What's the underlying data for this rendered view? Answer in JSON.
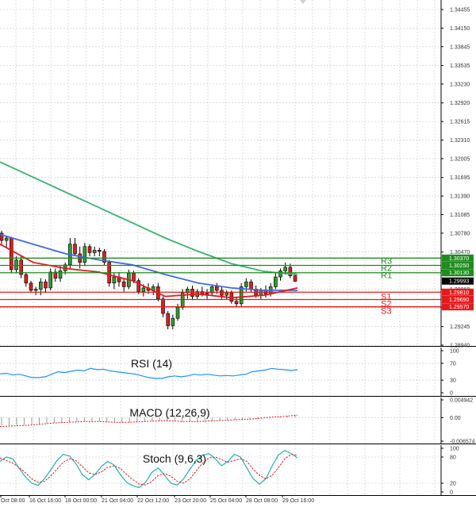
{
  "chart_data": {
    "type": "candlestick",
    "price_axis": {
      "ticks": [
        "1.34455",
        "1.34150",
        "1.33845",
        "1.33535",
        "1.33230",
        "1.32920",
        "1.32615",
        "1.32310",
        "1.32005",
        "1.31695",
        "1.31390",
        "1.31085",
        "1.30780",
        "1.30470",
        "1.30165",
        "1.29860",
        "1.29555",
        "1.29245",
        "1.28940"
      ],
      "range": [
        1.2894,
        1.34455
      ]
    },
    "time_axis": {
      "labels": [
        "Oct 08:00",
        "16 Oct 16:00",
        "18 Oct 00:00",
        "21 Oct 04:00",
        "22 Oct 12:00",
        "23 Oct 20:00",
        "25 Oct 04:00",
        "28 Oct 08:00",
        "29 Oct 16:00"
      ]
    },
    "candles": [
      [
        1.3078,
        1.3082,
        1.306,
        1.3066
      ],
      [
        1.3066,
        1.3074,
        1.3054,
        1.307
      ],
      [
        1.307,
        1.3072,
        1.3012,
        1.3018
      ],
      [
        1.3018,
        1.304,
        1.3012,
        1.3034
      ],
      [
        1.3034,
        1.304,
        1.3004,
        1.301
      ],
      [
        1.301,
        1.3014,
        1.299,
        1.2996
      ],
      [
        1.2996,
        1.3,
        1.298,
        1.2984
      ],
      [
        1.2984,
        1.299,
        1.2976,
        1.2986
      ],
      [
        1.2986,
        1.3004,
        1.2976,
        1.2998
      ],
      [
        1.2998,
        1.3002,
        1.298,
        1.2988
      ],
      [
        1.2988,
        1.302,
        1.2984,
        1.3014
      ],
      [
        1.3014,
        1.302,
        1.2998,
        1.3004
      ],
      [
        1.3004,
        1.3024,
        1.2998,
        1.3016
      ],
      [
        1.3016,
        1.303,
        1.301,
        1.3026
      ],
      [
        1.3026,
        1.307,
        1.302,
        1.306
      ],
      [
        1.306,
        1.307,
        1.304,
        1.3044
      ],
      [
        1.3044,
        1.3056,
        1.302,
        1.303
      ],
      [
        1.303,
        1.3062,
        1.3024,
        1.3056
      ],
      [
        1.3056,
        1.306,
        1.304,
        1.3046
      ],
      [
        1.3046,
        1.3056,
        1.304,
        1.305
      ],
      [
        1.305,
        1.3054,
        1.304,
        1.3048
      ],
      [
        1.3048,
        1.3052,
        1.3026,
        1.303
      ],
      [
        1.303,
        1.3034,
        1.299,
        1.2996
      ],
      [
        1.2996,
        1.3012,
        1.2986,
        1.3006
      ],
      [
        1.3006,
        1.3014,
        1.299,
        1.2998
      ],
      [
        1.2998,
        1.3004,
        1.2982,
        1.299
      ],
      [
        1.299,
        1.3018,
        1.2986,
        1.3012
      ],
      [
        1.3012,
        1.3016,
        1.2996,
        1.3
      ],
      [
        1.3,
        1.3004,
        1.2978,
        1.2982
      ],
      [
        1.2982,
        1.2994,
        1.2974,
        1.2988
      ],
      [
        1.2988,
        1.2996,
        1.2978,
        1.2984
      ],
      [
        1.2984,
        1.2994,
        1.2976,
        1.299
      ],
      [
        1.299,
        1.2996,
        1.2966,
        1.297
      ],
      [
        1.297,
        1.2974,
        1.294,
        1.2946
      ],
      [
        1.2946,
        1.295,
        1.292,
        1.2926
      ],
      [
        1.2926,
        1.2944,
        1.292,
        1.2938
      ],
      [
        1.2938,
        1.2962,
        1.2934,
        1.2956
      ],
      [
        1.2956,
        1.2986,
        1.2952,
        1.298
      ],
      [
        1.298,
        1.299,
        1.297,
        1.2986
      ],
      [
        1.2986,
        1.2992,
        1.2968,
        1.2974
      ],
      [
        1.2974,
        1.2986,
        1.297,
        1.2982
      ],
      [
        1.2982,
        1.299,
        1.2974,
        1.2978
      ],
      [
        1.2978,
        1.2986,
        1.297,
        1.298
      ],
      [
        1.298,
        1.2994,
        1.2976,
        1.299
      ],
      [
        1.299,
        1.2996,
        1.2978,
        1.2984
      ],
      [
        1.2984,
        1.299,
        1.297,
        1.2976
      ],
      [
        1.2976,
        1.2984,
        1.297,
        1.298
      ],
      [
        1.298,
        1.2984,
        1.2962,
        1.2966
      ],
      [
        1.2966,
        1.2972,
        1.2956,
        1.2962
      ],
      [
        1.2962,
        1.2996,
        1.2958,
        1.299
      ],
      [
        1.299,
        1.3004,
        1.2982,
        1.2998
      ],
      [
        1.2998,
        1.3002,
        1.298,
        1.2986
      ],
      [
        1.2986,
        1.2992,
        1.2972,
        1.2976
      ],
      [
        1.2976,
        1.2988,
        1.297,
        1.2984
      ],
      [
        1.2984,
        1.2992,
        1.2972,
        1.2978
      ],
      [
        1.2978,
        1.2996,
        1.2974,
        1.299
      ],
      [
        1.299,
        1.3012,
        1.2986,
        1.3006
      ],
      [
        1.3006,
        1.302,
        1.3,
        1.3016
      ],
      [
        1.3016,
        1.303,
        1.301,
        1.3022
      ],
      [
        1.3022,
        1.3028,
        1.3004,
        1.3008
      ],
      [
        1.3008,
        1.3012,
        1.2998,
        1.2999
      ]
    ],
    "moving_averages": [
      {
        "color": "#3cb371",
        "values": [
          1.3195,
          1.317,
          1.3145,
          1.312,
          1.3095,
          1.307,
          1.3048,
          1.3028,
          1.3015,
          1.301
        ]
      },
      {
        "color": "#4169e1",
        "values": [
          1.3076,
          1.306,
          1.3044,
          1.3034,
          1.3026,
          1.301,
          1.2996,
          1.2988,
          1.2984,
          1.2984
        ]
      },
      {
        "color": "#e41a1c",
        "values": [
          1.306,
          1.303,
          1.302,
          1.3014,
          1.3,
          1.2974,
          1.2978,
          1.2972,
          1.2976,
          1.2988
        ]
      }
    ],
    "levels": [
      {
        "name": "R3",
        "value": "1.30370",
        "color": "#1e8c1e"
      },
      {
        "name": "R2",
        "value": "1.30250",
        "color": "#1e8c1e"
      },
      {
        "name": "R1",
        "value": "1.30130",
        "color": "#1e8c1e"
      },
      {
        "name": "S1",
        "value": "1.29810",
        "color": "#e41a1c"
      },
      {
        "name": "S2",
        "value": "1.29690",
        "color": "#e41a1c"
      },
      {
        "name": "S3",
        "value": "1.29570",
        "color": "#e41a1c"
      }
    ],
    "current_price": "1.29993",
    "rsi": {
      "title": "RSI (14)",
      "ticks": [
        "100",
        "70",
        "30",
        "0"
      ],
      "range": [
        0,
        100
      ],
      "values": [
        45,
        46,
        42,
        44,
        40,
        36,
        36,
        38,
        44,
        50,
        48,
        51,
        54,
        52,
        58,
        55,
        56,
        52,
        50,
        48,
        46,
        44,
        40,
        36,
        34,
        34,
        38,
        40,
        38,
        40,
        44,
        42,
        44,
        42,
        40,
        41,
        40,
        42,
        44,
        50,
        52,
        54,
        58,
        56,
        55,
        53,
        55
      ]
    },
    "macd": {
      "title": "MACD (12,26,9)",
      "ticks": [
        "0.004942",
        "0.00",
        "-0.006574"
      ],
      "range": [
        -0.006574,
        0.004942
      ],
      "histogram": [
        -0.0022,
        -0.0022,
        -0.0021,
        -0.002,
        -0.0019,
        -0.0018,
        -0.0016,
        -0.0014,
        -0.0013,
        -0.0012,
        -0.0011,
        -0.001,
        -0.001,
        -0.0011,
        -0.0012,
        -0.0013,
        -0.0014,
        -0.0013,
        -0.0012,
        -0.0011,
        -0.001,
        -0.0009,
        -0.0009,
        -0.001,
        -0.0011,
        -0.0012,
        -0.0012,
        -0.0011,
        -0.001,
        -0.0009,
        -0.0008,
        -0.0007,
        -0.0006,
        -0.0005,
        -0.0003,
        -0.0001,
        0.0001,
        0.0003,
        0.0004,
        0.0006
      ],
      "signal": [
        -0.0025,
        -0.0024,
        -0.0023,
        -0.0022,
        -0.0021,
        -0.0019,
        -0.0017,
        -0.0015,
        -0.0014,
        -0.0013,
        -0.0012,
        -0.0011,
        -0.0011,
        -0.0011,
        -0.0012,
        -0.0013,
        -0.0013,
        -0.0013,
        -0.0012,
        -0.0011,
        -0.001,
        -0.0009,
        -0.0009,
        -0.001,
        -0.0011,
        -0.0011,
        -0.0011,
        -0.001,
        -0.0009,
        -0.0008,
        -0.0007,
        -0.0006,
        -0.0005,
        -0.0004,
        -0.0002,
        0.0,
        0.0002,
        0.0003,
        0.0005,
        0.0007
      ]
    },
    "stoch": {
      "title": "Stoch (9,6,3)",
      "ticks": [
        "100",
        "80",
        "20",
        "0"
      ],
      "range": [
        0,
        100
      ],
      "k": [
        70,
        80,
        76,
        55,
        35,
        20,
        15,
        30,
        50,
        72,
        86,
        82,
        65,
        40,
        28,
        40,
        58,
        70,
        62,
        40,
        22,
        14,
        10,
        22,
        45,
        55,
        38,
        20,
        16,
        30,
        52,
        72,
        84,
        88,
        76,
        60,
        70,
        86,
        80,
        55,
        30,
        18,
        30,
        60,
        85,
        95,
        88,
        78
      ],
      "d": [
        78,
        72,
        66,
        56,
        44,
        30,
        22,
        24,
        36,
        52,
        68,
        76,
        72,
        58,
        44,
        40,
        46,
        56,
        60,
        54,
        40,
        28,
        18,
        16,
        24,
        38,
        42,
        36,
        24,
        20,
        30,
        48,
        66,
        78,
        80,
        74,
        68,
        72,
        76,
        70,
        52,
        38,
        30,
        38,
        56,
        76,
        86,
        84
      ]
    }
  }
}
